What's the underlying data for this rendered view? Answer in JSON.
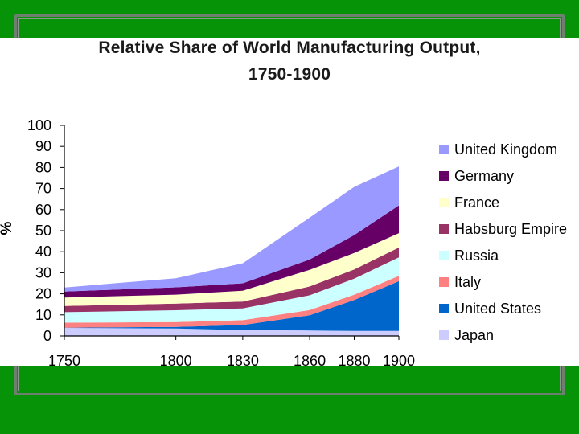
{
  "chart_data": {
    "type": "area",
    "stacked": true,
    "title": [
      "Relative Share of World Manufacturing Output,",
      "1750-1900"
    ],
    "ylabel": "%",
    "xlabel": "",
    "ylim": [
      0,
      100
    ],
    "yticks": [
      0,
      10,
      20,
      30,
      40,
      50,
      60,
      70,
      80,
      90,
      100
    ],
    "x": [
      1750,
      1800,
      1830,
      1860,
      1880,
      1900
    ],
    "x_tick_labels": [
      "1750",
      "1800",
      "1830",
      "1860",
      "1880",
      "1900"
    ],
    "grid": false,
    "legend_position": "right",
    "series": [
      {
        "name": "Japan",
        "color": "#ccccff",
        "values": [
          3.8,
          3.5,
          2.8,
          2.6,
          2.4,
          2.4
        ]
      },
      {
        "name": "United States",
        "color": "#0066cc",
        "values": [
          0.1,
          0.8,
          2.4,
          7.2,
          14.7,
          23.6
        ]
      },
      {
        "name": "Italy",
        "color": "#ff8080",
        "values": [
          2.4,
          2.3,
          2.3,
          2.5,
          2.5,
          2.5
        ]
      },
      {
        "name": "Russia",
        "color": "#ccffff",
        "values": [
          5.0,
          5.6,
          5.6,
          7.0,
          7.6,
          8.8
        ]
      },
      {
        "name": "Habsburg Empire",
        "color": "#993366",
        "values": [
          2.9,
          3.2,
          3.2,
          4.2,
          4.4,
          4.7
        ]
      },
      {
        "name": "France",
        "color": "#ffffcc",
        "values": [
          4.0,
          4.2,
          5.2,
          7.9,
          7.8,
          6.8
        ]
      },
      {
        "name": "Germany",
        "color": "#660066",
        "values": [
          2.9,
          3.5,
          3.5,
          4.9,
          8.5,
          13.2
        ]
      },
      {
        "name": "United Kingdom",
        "color": "#9999ff",
        "values": [
          1.9,
          4.3,
          9.5,
          19.9,
          22.9,
          18.5
        ]
      }
    ],
    "legend_order": [
      "United Kingdom",
      "Germany",
      "France",
      "Habsburg Empire",
      "Russia",
      "Italy",
      "United States",
      "Japan"
    ]
  },
  "colors": {
    "slide_background": "#079307",
    "content_background": "#ffffff",
    "frame": "#6f7f6f"
  }
}
